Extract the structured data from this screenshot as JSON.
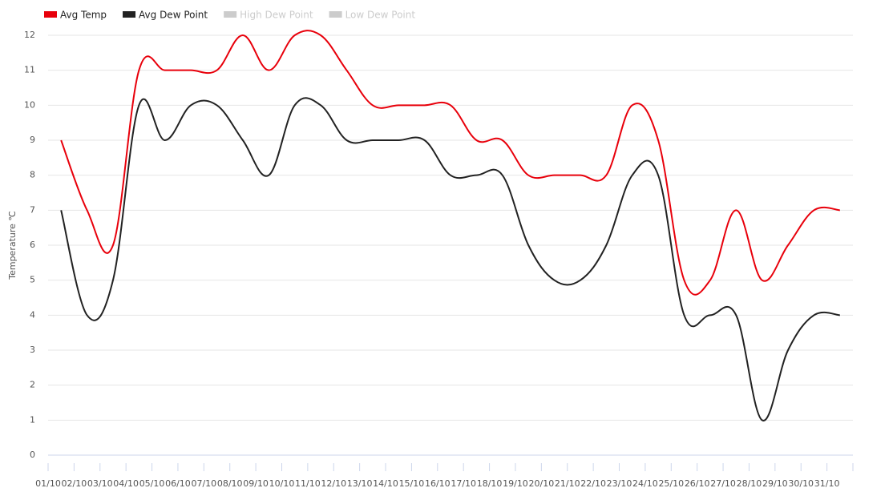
{
  "chart_data": {
    "type": "line",
    "y_label": "Temperature ℃",
    "categories": [
      "01/10",
      "02/10",
      "03/10",
      "04/10",
      "05/10",
      "06/10",
      "07/10",
      "08/10",
      "09/10",
      "10/10",
      "11/10",
      "12/10",
      "13/10",
      "14/10",
      "15/10",
      "16/10",
      "17/10",
      "18/10",
      "19/10",
      "20/10",
      "21/10",
      "22/10",
      "23/10",
      "24/10",
      "25/10",
      "26/10",
      "27/10",
      "28/10",
      "29/10",
      "30/10",
      "31/10"
    ],
    "series": [
      {
        "name": "Avg Temp",
        "color": "#e8000b",
        "values": [
          9,
          7,
          6,
          11,
          11,
          11,
          11,
          12,
          11,
          12,
          12,
          11,
          10,
          10,
          10,
          10,
          9,
          9,
          8,
          8,
          8,
          8,
          10,
          9,
          5,
          5,
          7,
          5,
          6,
          7,
          7
        ]
      },
      {
        "name": "Avg Dew Point",
        "color": "#222222",
        "values": [
          7,
          4,
          5,
          10,
          9,
          10,
          10,
          9,
          8,
          10,
          10,
          9,
          9,
          9,
          9,
          8,
          8,
          8,
          6,
          5,
          5,
          6,
          8,
          8,
          4,
          4,
          4,
          1,
          3,
          4,
          4
        ]
      }
    ],
    "hidden_series": [
      {
        "name": "High Dew Point",
        "color": "#cccccc"
      },
      {
        "name": "Low Dew Point",
        "color": "#cccccc"
      }
    ],
    "ylim": [
      0,
      12
    ],
    "yticks": [
      0,
      1,
      2,
      3,
      4,
      5,
      6,
      7,
      8,
      9,
      10,
      11,
      12
    ],
    "grid": true
  }
}
